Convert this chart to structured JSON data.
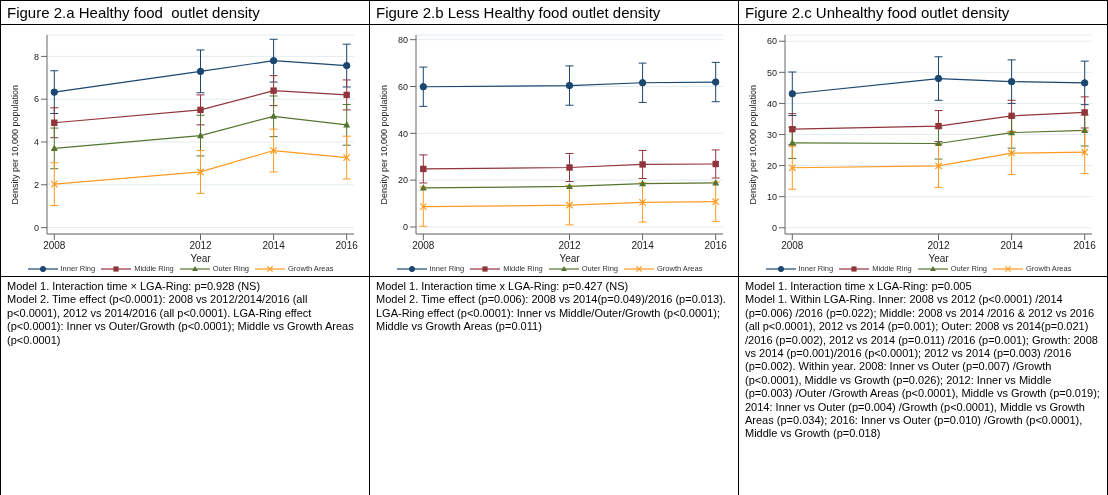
{
  "chart_data": [
    {
      "type": "line",
      "title": "Figure 2.a Healthy food  outlet density",
      "xlabel": "Year",
      "ylabel": "Density per 10,000 population",
      "x": [
        2008,
        2012,
        2014,
        2016
      ],
      "xlim": [
        2007.8,
        2016.2
      ],
      "xticks": [
        2008,
        2012,
        2014,
        2016
      ],
      "ylim": [
        -0.3,
        9
      ],
      "yticks": [
        0,
        2,
        4,
        6,
        8
      ],
      "grid": "y",
      "legend": "bottom",
      "series": [
        {
          "name": "Inner Ring",
          "color": "#1a476f",
          "marker": "circle",
          "values": [
            6.33,
            7.3,
            7.8,
            7.57
          ],
          "errors": [
            1.0,
            1.0,
            1.0,
            1.0
          ]
        },
        {
          "name": "Middle Ring",
          "color": "#90353b",
          "marker": "square",
          "values": [
            4.9,
            5.5,
            6.4,
            6.2
          ],
          "errors": [
            0.7,
            0.7,
            0.7,
            0.7
          ]
        },
        {
          "name": "Outer Ring",
          "color": "#55752f",
          "marker": "triangle",
          "values": [
            3.7,
            4.3,
            5.2,
            4.8
          ],
          "errors": [
            0.95,
            0.95,
            0.95,
            0.95
          ]
        },
        {
          "name": "Growth Areas",
          "color": "#ff9a1f",
          "marker": "cross",
          "values": [
            2.03,
            2.6,
            3.6,
            3.27
          ],
          "errors": [
            1.0,
            1.0,
            1.0,
            1.0
          ]
        }
      ],
      "annotations": [
        "Model 1. Interaction time × LGA-Ring: p=0.928 (NS)",
        "Model 2. Time effect (p<0.0001):  2008 vs 2012/2014/2016 (all p<0.0001), 2012 vs 2014/2016 (all p<0.0001). LGA-Ring effect (p<0.0001): Inner vs Outer/Growth (p<0.0001); Middle vs Growth Areas (p<0.0001)"
      ]
    },
    {
      "type": "line",
      "title": "Figure 2.b Less Healthy food outlet density",
      "xlabel": "Year",
      "ylabel": "Density per 10,000 population",
      "x": [
        2008,
        2012,
        2014,
        2016
      ],
      "xlim": [
        2007.8,
        2016.2
      ],
      "xticks": [
        2008,
        2012,
        2014,
        2016
      ],
      "ylim": [
        -3,
        82
      ],
      "yticks": [
        0,
        20,
        40,
        60,
        80
      ],
      "grid": "y",
      "legend": "bottom",
      "series": [
        {
          "name": "Inner Ring",
          "color": "#1a476f",
          "marker": "circle",
          "values": [
            59.9,
            60.4,
            61.6,
            61.9
          ],
          "errors": [
            8.4,
            8.4,
            8.4,
            8.4
          ]
        },
        {
          "name": "Middle Ring",
          "color": "#90353b",
          "marker": "square",
          "values": [
            24.8,
            25.4,
            26.7,
            26.9
          ],
          "errors": [
            6,
            6,
            6,
            6
          ]
        },
        {
          "name": "Outer Ring",
          "color": "#55752f",
          "marker": "triangle",
          "values": [
            16.7,
            17.3,
            18.5,
            18.8
          ]
        },
        {
          "name": "Growth Areas",
          "color": "#ff9a1f",
          "marker": "cross",
          "values": [
            8.7,
            9.3,
            10.5,
            10.8
          ],
          "errors": [
            8.4,
            8.4,
            8.4,
            8.4
          ]
        }
      ],
      "annotations": [
        "Model 1. Interaction time x LGA-Ring: p=0.427 (NS)",
        "Model 2. Time effect (p=0.006):  2008 vs 2014(p=0.049)/2016 (p=0.013). LGA-Ring effect (p<0.0001): Inner vs Middle/Outer/Growth (p<0.0001); Middle vs Growth Areas (p=0.011)"
      ]
    },
    {
      "type": "line",
      "title": "Figure 2.c Unhealthy food outlet density",
      "xlabel": "Year",
      "ylabel": "Density per 10,000 population",
      "x": [
        2008,
        2012,
        2014,
        2016
      ],
      "xlim": [
        2007.8,
        2016.2
      ],
      "xticks": [
        2008,
        2012,
        2014,
        2016
      ],
      "ylim": [
        -2,
        62
      ],
      "yticks": [
        0,
        10,
        20,
        30,
        40,
        50,
        60
      ],
      "grid": "y",
      "legend": "bottom",
      "series": [
        {
          "name": "Inner Ring",
          "color": "#1a476f",
          "marker": "circle",
          "values": [
            43.1,
            48,
            47,
            46.6
          ],
          "errors": [
            7,
            7,
            7,
            7
          ]
        },
        {
          "name": "Middle Ring",
          "color": "#90353b",
          "marker": "square",
          "values": [
            31.7,
            32.7,
            36,
            37.1
          ],
          "errors": [
            5,
            5,
            5,
            5
          ]
        },
        {
          "name": "Outer Ring",
          "color": "#55752f",
          "marker": "triangle",
          "values": [
            27.3,
            27.1,
            30.6,
            31.3
          ],
          "errors": [
            5,
            5,
            5,
            5
          ]
        },
        {
          "name": "Growth Areas",
          "color": "#ff9a1f",
          "marker": "cross",
          "values": [
            19.3,
            19.9,
            24,
            24.3
          ],
          "errors": [
            6.9,
            6.9,
            6.9,
            6.9
          ]
        }
      ],
      "annotations": [
        "Model 1. Interaction time x LGA-Ring: p=0.005",
        "Model 1. Within LGA-Ring. Inner: 2008 vs 2012 (p<0.0001) /2014 (p=0.006) /2016 (p=0.022); Middle: 2008 vs 2014 /2016 & 2012 vs 2016 (all p<0.0001), 2012 vs 2014 (p=0.001); Outer: 2008 vs 2014(p=0.021) /2016 (p=0.002), 2012 vs 2014 (p=0.011) /2016 (p=0.001); Growth: 2008 vs 2014 (p=0.001)/2016 (p<0.0001); 2012 vs 2014 (p=0.003) /2016 (p=0.002). Within year. 2008: Inner vs Outer (p=0.007) /Growth (p<0.0001), Middle vs Growth (p=0.026); 2012: Inner vs Middle (p=0.003) /Outer /Growth Areas (p<0.0001), Middle vs Growth (p=0.019); 2014: Inner vs Outer (p=0.004) /Growth (p<0.0001), Middle vs Growth Areas (p=0.034); 2016: Inner vs Outer (p=0.010) /Growth (p<0.0001), Middle vs Growth (p=0.018)"
      ]
    }
  ]
}
